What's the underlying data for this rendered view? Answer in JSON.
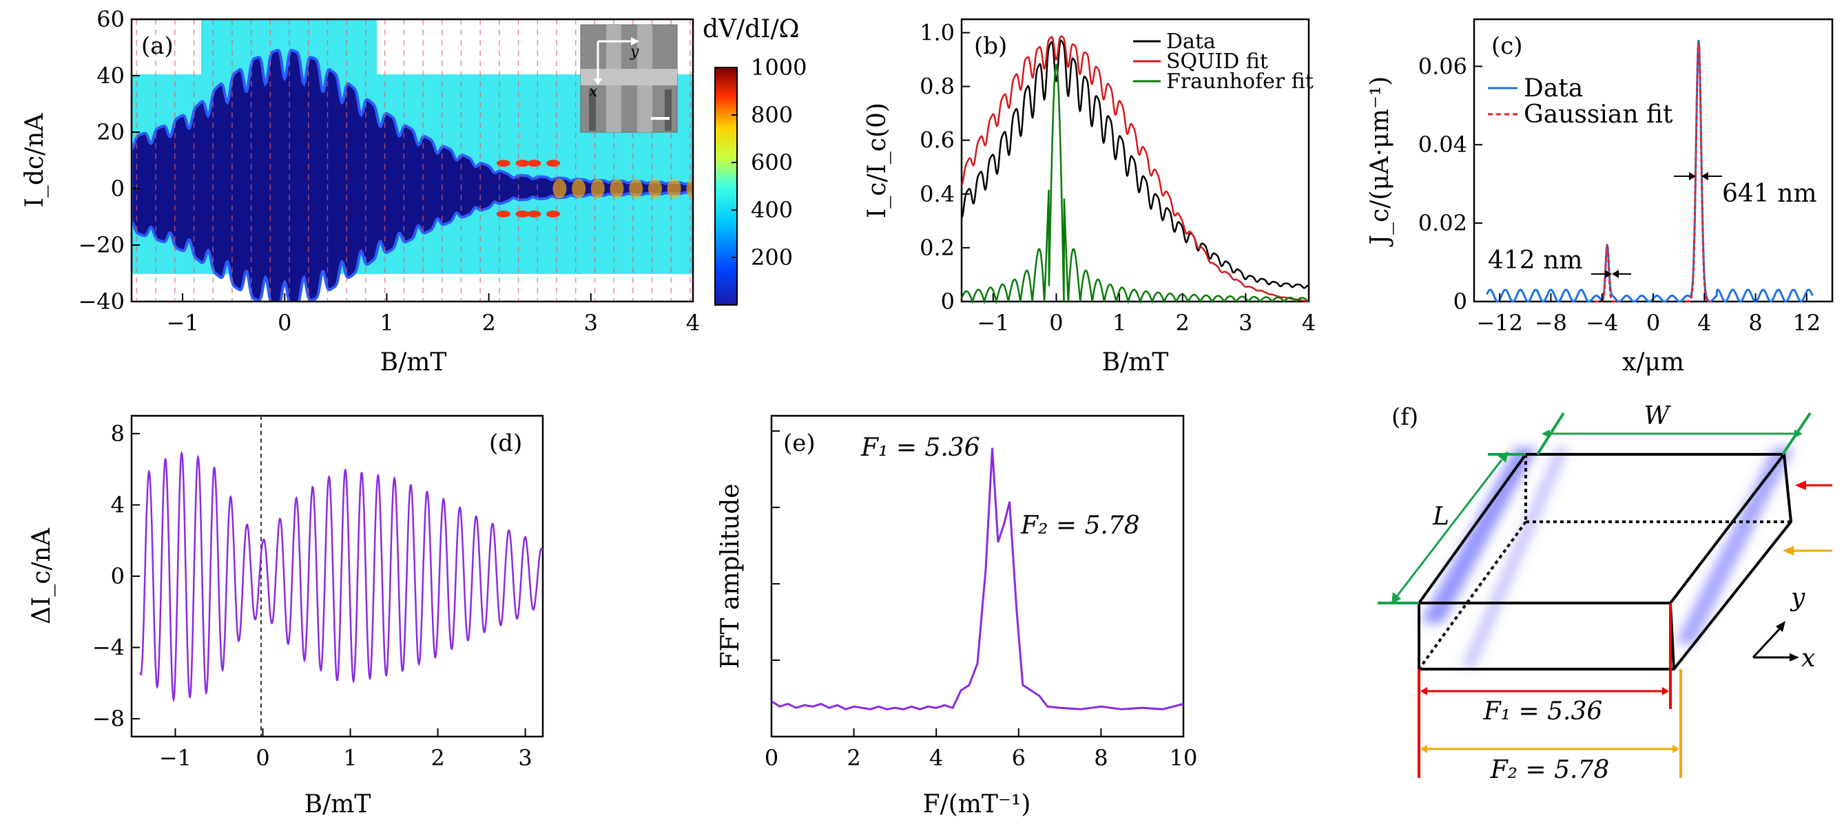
{
  "chart_data": [
    {
      "panel": "(a)",
      "type": "heatmap",
      "xlabel": "B/mT",
      "ylabel": "I_dc/nA",
      "xlim": [
        -1.5,
        4
      ],
      "ylim": [
        -40,
        60
      ],
      "xticks": [
        "−1",
        "0",
        "1",
        "2",
        "3",
        "4"
      ],
      "yticks": [
        "−40",
        "−20",
        "0",
        "20",
        "40",
        "60"
      ],
      "colorbar": {
        "title": "dV/dI/Ω",
        "ticks": [
          "200",
          "400",
          "600",
          "800",
          "1000"
        ],
        "range": [
          0,
          1000
        ]
      },
      "critical_current_envelope": {
        "B": [
          -1.5,
          -1.2,
          -0.9,
          -0.6,
          -0.3,
          0,
          0.3,
          0.6,
          0.9,
          1.2,
          1.5,
          1.8,
          2.0,
          2.2,
          2.6,
          3.0,
          3.5,
          4.0
        ],
        "Ic": [
          18,
          22,
          28,
          38,
          46,
          50,
          46,
          38,
          29,
          22,
          16,
          11,
          8,
          5,
          4,
          3,
          2.5,
          2
        ]
      },
      "inset": "device micrograph (x, y axes)",
      "panel_label": "(a)"
    },
    {
      "panel": "(b)",
      "type": "line",
      "xlabel": "B/mT",
      "ylabel": "I_c/I_c(0)",
      "xlim": [
        -1.5,
        4
      ],
      "ylim": [
        0,
        1.05
      ],
      "xticks": [
        "−1",
        "0",
        "1",
        "2",
        "3",
        "4"
      ],
      "yticks": [
        "0",
        "0.2",
        "0.4",
        "0.6",
        "0.8",
        "1.0"
      ],
      "series": [
        {
          "name": "Data",
          "color": "#000000",
          "x": [
            -1.5,
            -1.0,
            -0.5,
            0,
            0.5,
            1.0,
            1.5,
            2.0,
            2.5,
            3.0,
            3.5,
            4.0
          ],
          "y": [
            0.38,
            0.55,
            0.78,
            1.0,
            0.82,
            0.62,
            0.42,
            0.28,
            0.18,
            0.1,
            0.07,
            0.06
          ]
        },
        {
          "name": "SQUID fit",
          "color": "#d7191c",
          "x": [
            -1.5,
            -1.0,
            -0.5,
            0,
            0.5,
            1.0,
            1.5,
            2.0,
            2.5,
            3.0,
            3.5,
            4.0
          ],
          "y": [
            0.48,
            0.7,
            0.9,
            1.0,
            0.92,
            0.75,
            0.52,
            0.3,
            0.14,
            0.06,
            0.02,
            0.0
          ]
        },
        {
          "name": "Fraunhofer fit",
          "color": "#0a7a0a",
          "x": [
            -1.5,
            -1.0,
            -0.5,
            -0.2,
            0,
            0.2,
            0.5,
            1.0,
            1.5,
            2.0,
            3.0,
            4.0
          ],
          "y": [
            0.02,
            0.06,
            0.12,
            0.21,
            0.88,
            0.21,
            0.12,
            0.06,
            0.04,
            0.03,
            0.01,
            0.0
          ]
        }
      ],
      "legend": "top-right",
      "panel_label": "(b)"
    },
    {
      "panel": "(c)",
      "type": "line",
      "xlabel": "x/μm",
      "ylabel": "J_c/(μA·μm⁻¹)",
      "xlim": [
        -14,
        14
      ],
      "ylim": [
        0,
        0.072
      ],
      "xticks": [
        "−12",
        "−8",
        "−4",
        "0",
        "4",
        "8",
        "12"
      ],
      "yticks": [
        "0",
        "0.02",
        "0.04",
        "0.06"
      ],
      "series": [
        {
          "name": "Data",
          "color": "#1e73e6",
          "x": [
            -12,
            -8,
            -5,
            -4,
            -3.5,
            -3,
            0,
            3,
            3.5,
            4,
            6,
            10,
            12
          ],
          "y": [
            0.002,
            0.001,
            0.001,
            0.005,
            0.014,
            0.005,
            0.001,
            0.008,
            0.066,
            0.008,
            0.001,
            0.002,
            0.001
          ]
        },
        {
          "name": "Gaussian fit",
          "color": "#e8202a",
          "x": [
            -4,
            -3.5,
            -3,
            3,
            3.5,
            4
          ],
          "y": [
            0.0,
            0.014,
            0.0,
            0.0,
            0.066,
            0.0
          ]
        }
      ],
      "annotations": [
        "412 nm",
        "641 nm"
      ],
      "legend": "top-left",
      "panel_label": "(c)"
    },
    {
      "panel": "(d)",
      "type": "line",
      "xlabel": "B/mT",
      "ylabel": "ΔI_c/nA",
      "xlim": [
        -1.5,
        3.2
      ],
      "ylim": [
        -9,
        9
      ],
      "xticks": [
        "−1",
        "0",
        "1",
        "2",
        "3"
      ],
      "yticks": [
        "−8",
        "−4",
        "0",
        "4",
        "8"
      ],
      "series": [
        {
          "name": "",
          "color": "#8a2be2",
          "oscillation_period": 0.187,
          "envelope_B": [
            -1.4,
            -1.0,
            -0.6,
            -0.2,
            0,
            0.4,
            0.9,
            1.5,
            2.0,
            2.5,
            3.0,
            3.2
          ],
          "envelope_amplitude": [
            5.5,
            7.0,
            6.5,
            3.0,
            2.0,
            4.5,
            6.0,
            5.5,
            4.5,
            3.2,
            2.2,
            1.5
          ]
        }
      ],
      "vertical_line_at": 0,
      "panel_label": "(d)"
    },
    {
      "panel": "(e)",
      "type": "line",
      "xlabel": "F/(mT⁻¹)",
      "ylabel": "FFT amplitude",
      "xlim": [
        0,
        10
      ],
      "xticks": [
        "0",
        "2",
        "4",
        "6",
        "8",
        "10"
      ],
      "series": [
        {
          "name": "",
          "color": "#8a2be2",
          "x": [
            0,
            0.2,
            0.4,
            0.6,
            0.8,
            1.0,
            1.2,
            1.4,
            1.6,
            1.8,
            2.0,
            2.2,
            2.4,
            2.6,
            2.8,
            3.0,
            3.2,
            3.4,
            3.6,
            3.8,
            4.0,
            4.2,
            4.4,
            4.6,
            4.8,
            5.0,
            5.2,
            5.36,
            5.5,
            5.65,
            5.78,
            5.95,
            6.1,
            6.3,
            6.5,
            6.7,
            7.0,
            7.5,
            8.0,
            8.5,
            9.0,
            9.5,
            10.0
          ],
          "y": [
            0.06,
            0.04,
            0.05,
            0.035,
            0.045,
            0.04,
            0.05,
            0.035,
            0.045,
            0.03,
            0.04,
            0.035,
            0.03,
            0.04,
            0.03,
            0.035,
            0.03,
            0.04,
            0.03,
            0.04,
            0.035,
            0.045,
            0.035,
            0.1,
            0.12,
            0.2,
            0.55,
            1.0,
            0.65,
            0.72,
            0.8,
            0.4,
            0.12,
            0.1,
            0.08,
            0.04,
            0.035,
            0.03,
            0.04,
            0.03,
            0.035,
            0.03,
            0.05
          ]
        }
      ],
      "annotations": [
        "F₁ = 5.36",
        "F₂ = 5.78"
      ],
      "panel_label": "(e)"
    }
  ],
  "schematic": {
    "panel_label": "(f)",
    "labels": {
      "W": "W",
      "L": "L",
      "F1": "F₁ = 5.36",
      "F2": "F₂ = 5.78",
      "y": "y",
      "x": "x"
    }
  }
}
